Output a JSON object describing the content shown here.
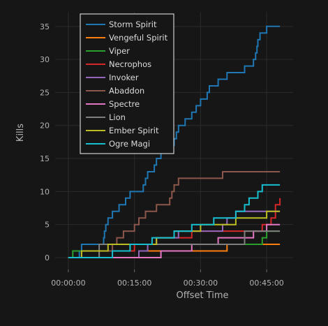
{
  "chart_data": {
    "type": "line",
    "drawstyle": "steps-post",
    "xlabel": "Offset Time",
    "ylabel": "Kills",
    "x_unit": "minutes (hh:mm:ss offset)",
    "xlim": [
      -3,
      51
    ],
    "ylim": [
      -1.8,
      37.2
    ],
    "xticks": [
      0,
      15,
      30,
      45
    ],
    "xtick_labels": [
      "00:00:00",
      "00:15:00",
      "00:30:00",
      "00:45:00"
    ],
    "yticks": [
      0,
      5,
      10,
      15,
      20,
      25,
      30,
      35
    ],
    "ytick_labels": [
      "0",
      "5",
      "10",
      "15",
      "20",
      "25",
      "30",
      "35"
    ],
    "grid": true,
    "legend_position": "top-left",
    "series": [
      {
        "name": "Storm Spirit",
        "color": "#1f77b4",
        "x": [
          0,
          2.5,
          3,
          5.5,
          6,
          7,
          8,
          8.2,
          8.5,
          9,
          10,
          11.5,
          13,
          14,
          17,
          17.5,
          18,
          19.5,
          20,
          21,
          22,
          23,
          24,
          24.5,
          25,
          26.5,
          27,
          28,
          29,
          30,
          31.5,
          32,
          33,
          34,
          35,
          35.5,
          36,
          37.5,
          40,
          42,
          42.5,
          42.8,
          43,
          43.5,
          44,
          45,
          46,
          48
        ],
        "y": [
          0,
          1,
          2,
          2,
          2,
          2,
          3,
          4,
          5,
          6,
          7,
          8,
          9,
          10,
          11,
          12,
          13,
          14,
          15,
          16,
          17,
          17,
          18,
          19,
          20,
          21,
          21,
          22,
          23,
          24,
          25,
          26,
          26,
          27,
          27,
          27,
          28,
          28,
          29,
          30,
          31,
          32,
          33,
          34,
          34,
          35,
          35,
          35
        ]
      },
      {
        "name": "Vengeful Spirit",
        "color": "#ff7f0e",
        "x": [
          0,
          16,
          18,
          36,
          48
        ],
        "y": [
          0,
          1,
          1,
          2,
          2
        ]
      },
      {
        "name": "Viper",
        "color": "#2ca02c",
        "x": [
          0,
          1,
          4,
          10,
          14,
          30,
          32,
          36,
          38,
          40,
          44,
          45,
          48
        ],
        "y": [
          0,
          1,
          1,
          1,
          2,
          2,
          2,
          2,
          2,
          2,
          3,
          4,
          4
        ]
      },
      {
        "name": "Necrophos",
        "color": "#d62728",
        "x": [
          0,
          3,
          5,
          15,
          17,
          20,
          28,
          32,
          44,
          46,
          47,
          48
        ],
        "y": [
          0,
          1,
          1,
          2,
          2,
          3,
          4,
          4,
          5,
          6,
          8,
          9
        ]
      },
      {
        "name": "Invoker",
        "color": "#9467bd",
        "x": [
          0,
          2,
          5,
          16,
          18,
          20,
          25,
          30,
          35,
          36,
          38,
          40,
          41,
          43,
          44,
          48
        ],
        "y": [
          0,
          0,
          0,
          1,
          2,
          3,
          4,
          4,
          5,
          6,
          7,
          7,
          7,
          7,
          7,
          7
        ]
      },
      {
        "name": "Abaddon",
        "color": "#8c564b",
        "x": [
          0,
          7,
          10,
          11,
          12.5,
          15,
          16,
          17.5,
          20,
          23,
          23.5,
          24,
          25,
          27,
          35,
          41,
          48
        ],
        "y": [
          0,
          1,
          2,
          3,
          4,
          5,
          6,
          7,
          8,
          9,
          10,
          11,
          12,
          12,
          13,
          13,
          13
        ]
      },
      {
        "name": "Spectre",
        "color": "#e377c2",
        "x": [
          0,
          8,
          13,
          21,
          28,
          31,
          34,
          36,
          38,
          42,
          43,
          45,
          48
        ],
        "y": [
          0,
          0,
          0,
          1,
          2,
          2,
          3,
          3,
          3,
          4,
          4,
          5,
          5
        ]
      },
      {
        "name": "Lion",
        "color": "#7f7f7f",
        "x": [
          0,
          7,
          21,
          26,
          37,
          40,
          48
        ],
        "y": [
          0,
          2,
          2,
          2,
          2,
          4,
          4
        ]
      },
      {
        "name": "Ember Spirit",
        "color": "#bcbd22",
        "x": [
          0,
          3,
          9,
          14,
          17,
          20,
          24,
          27,
          30,
          33,
          36,
          38,
          41,
          43,
          45,
          46,
          48
        ],
        "y": [
          0,
          1,
          2,
          2,
          2,
          3,
          4,
          4,
          5,
          5,
          5,
          6,
          6,
          6,
          7,
          7,
          7
        ]
      },
      {
        "name": "Ogre Magi",
        "color": "#17becf",
        "x": [
          0,
          2,
          5,
          10,
          14,
          19,
          23,
          24,
          26,
          28,
          30,
          33,
          35,
          38,
          40,
          41,
          43,
          44,
          45,
          46,
          48
        ],
        "y": [
          0,
          0,
          0,
          1,
          2,
          3,
          3,
          4,
          4,
          5,
          5,
          6,
          6,
          7,
          8,
          9,
          10,
          11,
          11,
          11,
          11
        ]
      }
    ]
  }
}
